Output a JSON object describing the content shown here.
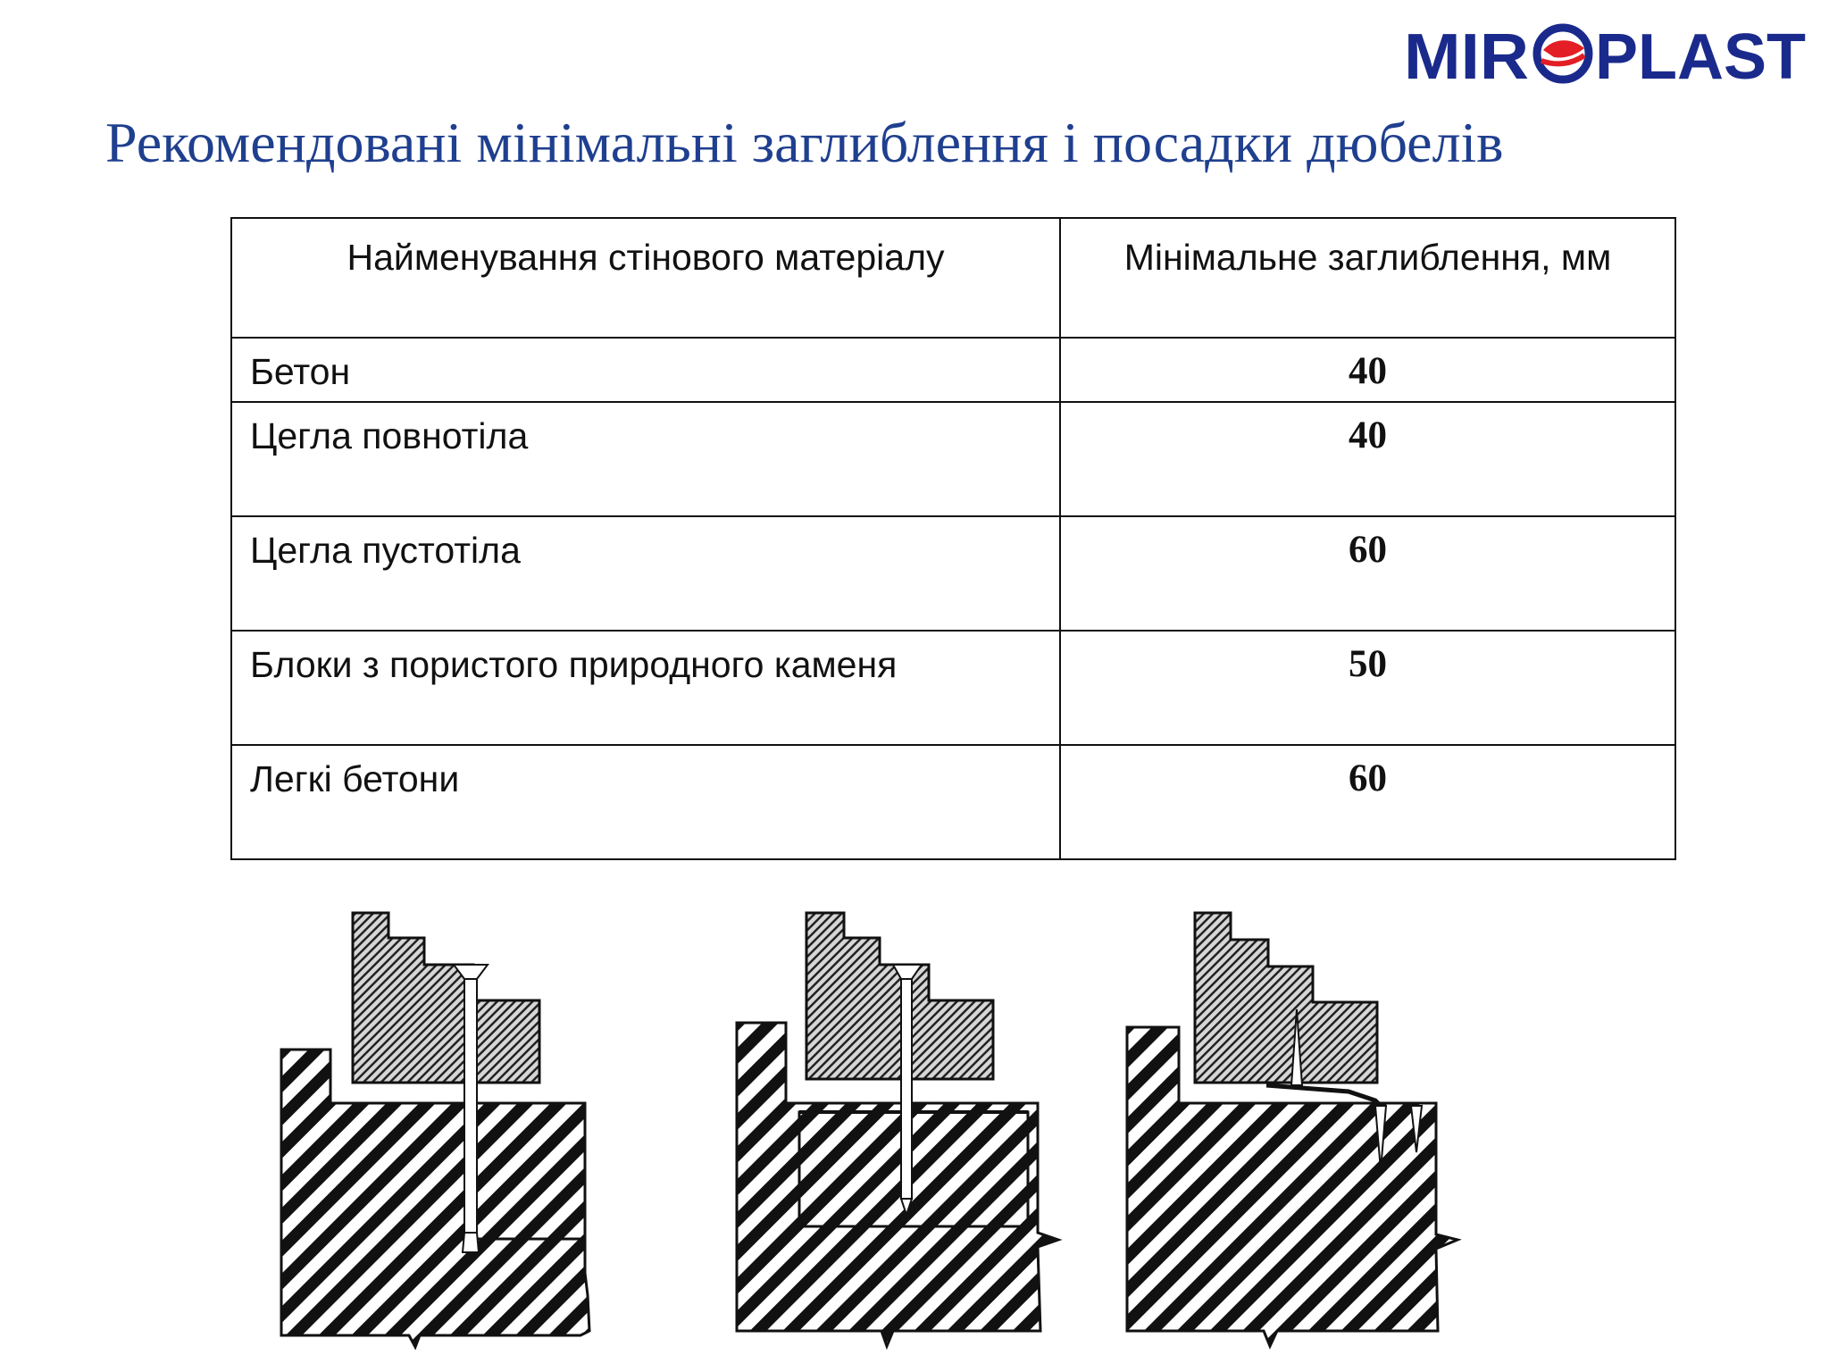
{
  "logo": {
    "text_left": "MIR",
    "text_right": "PLAST",
    "colors": {
      "blue": "#1a2a8c",
      "red": "#e31e24"
    }
  },
  "page": {
    "title": "Рекомендовані мінімальні заглиблення і посадки дюбелів"
  },
  "table": {
    "headers": [
      "Найменування стінового матеріалу",
      "Мінімальне заглиблення, мм"
    ],
    "rows": [
      {
        "material": "Бетон",
        "depth": "40"
      },
      {
        "material": "Цегла повнотіла",
        "depth": "40"
      },
      {
        "material": "Цегла пустотіла",
        "depth": "60"
      },
      {
        "material": "Блоки з пористого природного каменя",
        "depth": "50"
      },
      {
        "material": "Легкі бетони",
        "depth": "60"
      }
    ]
  },
  "illustrations": [
    "dowel-in-solid-wall",
    "dowel-in-hollow-brick",
    "dowel-in-porous-stone"
  ]
}
